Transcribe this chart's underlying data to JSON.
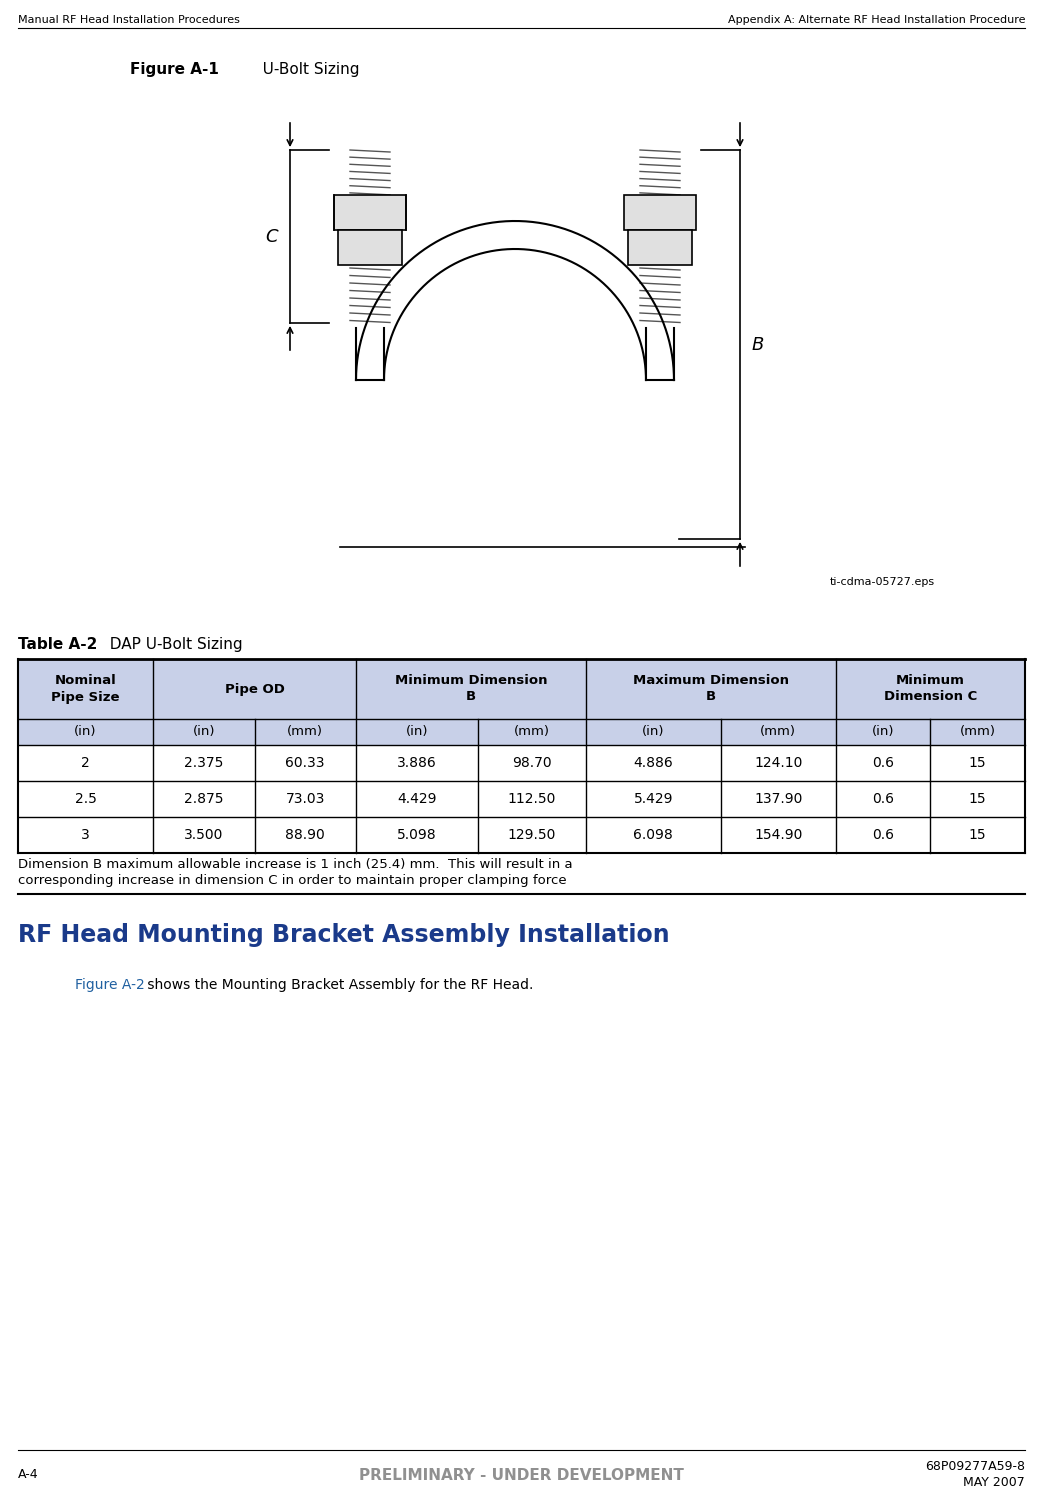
{
  "header_left": "Manual RF Head Installation Procedures",
  "header_right": "Appendix A: Alternate RF Head Installation Procedure",
  "figure_title_bold": "Figure A-1",
  "figure_title_normal": "   U-Bolt Sizing",
  "figure_caption": "ti-cdma-05727.eps",
  "table_title_bold": "Table A-2",
  "table_subtitle": "  DAP U-Bolt Sizing",
  "col_headers_row2": [
    "(in)",
    "(in)",
    "(mm)",
    "(in)",
    "(mm)",
    "(in)",
    "(mm)",
    "(in)",
    "(mm)"
  ],
  "table_data": [
    [
      "2",
      "2.375",
      "60.33",
      "3.886",
      "98.70",
      "4.886",
      "124.10",
      "0.6",
      "15"
    ],
    [
      "2.5",
      "2.875",
      "73.03",
      "4.429",
      "112.50",
      "5.429",
      "137.90",
      "0.6",
      "15"
    ],
    [
      "3",
      "3.500",
      "88.90",
      "5.098",
      "129.50",
      "6.098",
      "154.90",
      "0.6",
      "15"
    ]
  ],
  "table_note_line1": "Dimension B maximum allowable increase is 1 inch (25.4) mm.  This will result in a",
  "table_note_line2": "corresponding increase in dimension C in order to maintain proper clamping force",
  "section_heading": "RF Head Mounting Bracket Assembly Installation",
  "body_text_prefix": "Figure A-2",
  "body_text_suffix": " shows the Mounting Bracket Assembly for the RF Head.",
  "footer_left": "A-4",
  "footer_right_top": "68P09277A59-8",
  "footer_right_bottom": "MAY 2007",
  "footer_center": "PRELIMINARY - UNDER DEVELOPMENT",
  "table_header_bg": "#c8d0e8",
  "section_heading_color": "#1a3a8a",
  "link_color": "#2060a0",
  "footer_center_color": "#909090",
  "bg_color": "#ffffff"
}
